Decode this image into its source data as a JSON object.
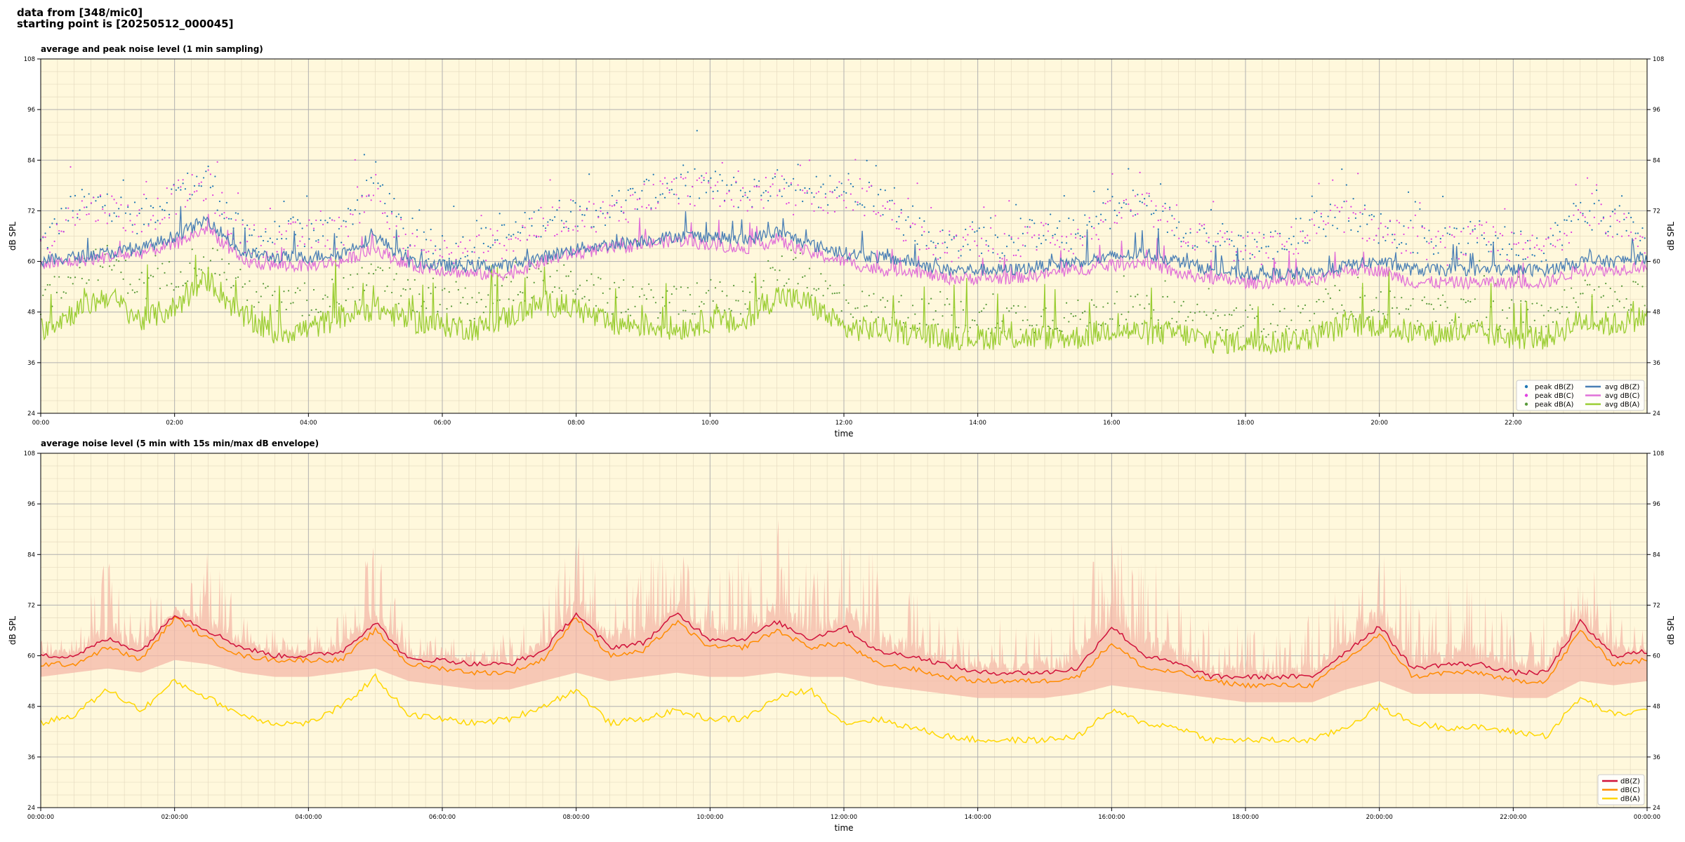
{
  "header": {
    "line1": "data from [348/mic0]",
    "line2": "starting point is [20250512_000045]"
  },
  "colors": {
    "plot_bg": "#fff8dc",
    "grid_major": "#b0b0b0",
    "grid_minor": "#e6dcc0",
    "peak_z": "#1f77b4",
    "peak_c": "#e040e0",
    "peak_a": "#5a9a3a",
    "avg_z": "#4a7fb5",
    "avg_c": "#e070d8",
    "avg_a": "#9acd32",
    "dbz": "#d0103a",
    "dbc": "#ff8c00",
    "dba": "#ffd700",
    "envelope": "#f4b8a8"
  },
  "chart_data": [
    {
      "type": "line",
      "title": "average and peak noise level (1 min sampling)",
      "xlabel": "time",
      "ylabel": "dB SPL",
      "ylim": [
        24,
        108
      ],
      "yticks": [
        24,
        36,
        48,
        60,
        72,
        84,
        96,
        108
      ],
      "xlim": [
        0,
        24
      ],
      "xticks_hours": [
        0,
        2,
        4,
        6,
        8,
        10,
        12,
        14,
        16,
        18,
        20,
        22
      ],
      "xtick_labels": [
        "00:00",
        "02:00",
        "04:00",
        "06:00",
        "08:00",
        "10:00",
        "12:00",
        "14:00",
        "16:00",
        "18:00",
        "20:00",
        "22:00"
      ],
      "grid": true,
      "legend_position": "bottom-right",
      "legend": [
        "peak dB(Z)",
        "peak dB(C)",
        "peak dB(A)",
        "avg dB(Z)",
        "avg dB(C)",
        "avg dB(A)"
      ],
      "x_hours": [
        0,
        0.5,
        1,
        1.5,
        2,
        2.5,
        3,
        3.5,
        4,
        4.5,
        5,
        5.5,
        6,
        6.5,
        7,
        7.5,
        8,
        8.5,
        9,
        9.5,
        10,
        10.5,
        11,
        11.5,
        12,
        12.5,
        13,
        13.5,
        14,
        14.5,
        15,
        15.5,
        16,
        16.5,
        17,
        17.5,
        18,
        18.5,
        19,
        19.5,
        20,
        20.5,
        21,
        21.5,
        22,
        22.5,
        23,
        23.5,
        24
      ],
      "series": [
        {
          "name": "avg dB(Z)",
          "values": [
            60,
            61,
            62,
            63,
            66,
            70,
            62,
            61,
            61,
            62,
            66,
            60,
            59,
            59,
            59,
            61,
            63,
            64,
            65,
            66,
            66,
            65,
            67,
            64,
            62,
            61,
            60,
            58,
            58,
            58,
            59,
            60,
            61,
            62,
            60,
            58,
            57,
            57,
            57,
            59,
            60,
            58,
            58,
            58,
            58,
            58,
            60,
            60,
            61
          ]
        },
        {
          "name": "avg dB(C)",
          "values": [
            59,
            60,
            61,
            62,
            64,
            68,
            60,
            59,
            59,
            60,
            63,
            59,
            58,
            57,
            57,
            60,
            62,
            63,
            64,
            65,
            64,
            63,
            65,
            62,
            60,
            58,
            58,
            56,
            56,
            56,
            57,
            58,
            59,
            60,
            57,
            56,
            55,
            55,
            55,
            58,
            58,
            55,
            55,
            55,
            55,
            55,
            58,
            58,
            59
          ]
        },
        {
          "name": "avg dB(A)",
          "values": [
            44,
            48,
            52,
            46,
            49,
            56,
            47,
            43,
            44,
            47,
            49,
            46,
            45,
            44,
            47,
            50,
            49,
            45,
            45,
            44,
            46,
            45,
            52,
            50,
            44,
            44,
            43,
            42,
            42,
            42,
            42,
            42,
            44,
            43,
            43,
            41,
            41,
            41,
            42,
            45,
            45,
            43,
            43,
            43,
            42,
            42,
            46,
            45,
            47
          ]
        },
        {
          "name": "peak dB(Z)",
          "values": [
            64,
            73,
            74,
            70,
            76,
            80,
            66,
            66,
            67,
            68,
            80,
            64,
            62,
            64,
            66,
            70,
            72,
            72,
            76,
            78,
            78,
            76,
            78,
            74,
            78,
            76,
            68,
            64,
            66,
            64,
            68,
            66,
            72,
            74,
            68,
            66,
            64,
            64,
            68,
            72,
            68,
            66,
            64,
            66,
            64,
            64,
            72,
            70,
            66
          ]
        },
        {
          "name": "peak dB(C)",
          "values": [
            62,
            72,
            73,
            69,
            75,
            78,
            65,
            65,
            66,
            67,
            78,
            63,
            61,
            63,
            65,
            69,
            71,
            71,
            75,
            77,
            77,
            75,
            77,
            73,
            76,
            74,
            67,
            63,
            65,
            63,
            67,
            65,
            71,
            73,
            67,
            65,
            63,
            63,
            67,
            71,
            67,
            65,
            63,
            65,
            63,
            63,
            71,
            69,
            65
          ]
        },
        {
          "name": "peak dB(A)",
          "values": [
            50,
            58,
            60,
            54,
            57,
            62,
            54,
            50,
            50,
            53,
            56,
            52,
            50,
            50,
            53,
            56,
            55,
            51,
            51,
            50,
            52,
            51,
            58,
            56,
            50,
            49,
            48,
            47,
            47,
            47,
            47,
            47,
            49,
            48,
            48,
            46,
            46,
            46,
            47,
            50,
            50,
            48,
            48,
            48,
            47,
            47,
            52,
            51,
            52
          ]
        }
      ]
    },
    {
      "type": "line",
      "title": "average noise level (5 min with 15s min/max dB envelope)",
      "xlabel": "time",
      "ylabel": "dB SPL",
      "ylim": [
        24,
        108
      ],
      "yticks": [
        24,
        36,
        48,
        60,
        72,
        84,
        96,
        108
      ],
      "xlim": [
        0,
        24
      ],
      "xticks_hours": [
        0,
        2,
        4,
        6,
        8,
        10,
        12,
        14,
        16,
        18,
        20,
        22,
        24
      ],
      "xtick_labels": [
        "00:00:00",
        "02:00:00",
        "04:00:00",
        "06:00:00",
        "08:00:00",
        "10:00:00",
        "12:00:00",
        "14:00:00",
        "16:00:00",
        "18:00:00",
        "20:00:00",
        "22:00:00",
        "00:00:00"
      ],
      "grid": true,
      "legend_position": "bottom-right",
      "legend": [
        "dB(Z)",
        "dB(C)",
        "dB(A)"
      ],
      "x_hours": [
        0,
        0.5,
        1,
        1.5,
        2,
        2.5,
        3,
        3.5,
        4,
        4.5,
        5,
        5.5,
        6,
        6.5,
        7,
        7.5,
        8,
        8.5,
        9,
        9.5,
        10,
        10.5,
        11,
        11.5,
        12,
        12.5,
        13,
        13.5,
        14,
        14.5,
        15,
        15.5,
        16,
        16.5,
        17,
        17.5,
        18,
        18.5,
        19,
        19.5,
        20,
        20.5,
        21,
        21.5,
        22,
        22.5,
        23,
        23.5,
        24
      ],
      "series": [
        {
          "name": "dB(Z)",
          "values": [
            60,
            60,
            64,
            61,
            70,
            66,
            62,
            60,
            60,
            61,
            68,
            59,
            59,
            58,
            58,
            61,
            70,
            62,
            63,
            70,
            64,
            64,
            68,
            64,
            67,
            61,
            60,
            58,
            56,
            56,
            56,
            57,
            67,
            60,
            58,
            55,
            55,
            55,
            55,
            61,
            67,
            57,
            58,
            58,
            56,
            56,
            68,
            60,
            61
          ]
        },
        {
          "name": "dB(C)",
          "values": [
            58,
            58,
            62,
            59,
            69,
            64,
            60,
            59,
            59,
            59,
            66,
            58,
            57,
            56,
            56,
            59,
            69,
            60,
            61,
            68,
            62,
            62,
            66,
            62,
            63,
            58,
            57,
            55,
            54,
            54,
            54,
            55,
            63,
            57,
            56,
            54,
            53,
            53,
            53,
            59,
            65,
            55,
            56,
            56,
            54,
            54,
            66,
            58,
            59
          ]
        },
        {
          "name": "dB(A)",
          "values": [
            44,
            46,
            52,
            47,
            54,
            50,
            46,
            44,
            44,
            48,
            55,
            46,
            45,
            44,
            45,
            48,
            52,
            44,
            45,
            47,
            45,
            45,
            50,
            52,
            44,
            45,
            43,
            41,
            40,
            40,
            40,
            41,
            47,
            44,
            43,
            40,
            40,
            40,
            40,
            43,
            48,
            44,
            43,
            43,
            42,
            41,
            50,
            46,
            47
          ]
        },
        {
          "name": "envelope max",
          "values": [
            63,
            66,
            78,
            70,
            76,
            80,
            70,
            65,
            65,
            68,
            82,
            64,
            63,
            62,
            64,
            70,
            84,
            72,
            78,
            82,
            76,
            80,
            86,
            76,
            82,
            78,
            72,
            66,
            64,
            66,
            68,
            72,
            84,
            78,
            74,
            64,
            64,
            64,
            66,
            74,
            86,
            70,
            72,
            74,
            66,
            66,
            82,
            70,
            66
          ]
        },
        {
          "name": "envelope min",
          "values": [
            55,
            56,
            57,
            56,
            59,
            58,
            56,
            55,
            55,
            56,
            57,
            54,
            53,
            52,
            52,
            54,
            56,
            54,
            55,
            56,
            55,
            55,
            56,
            55,
            55,
            53,
            52,
            51,
            50,
            50,
            50,
            51,
            53,
            52,
            51,
            50,
            49,
            49,
            49,
            52,
            54,
            51,
            51,
            51,
            50,
            50,
            54,
            53,
            54
          ]
        }
      ]
    }
  ]
}
